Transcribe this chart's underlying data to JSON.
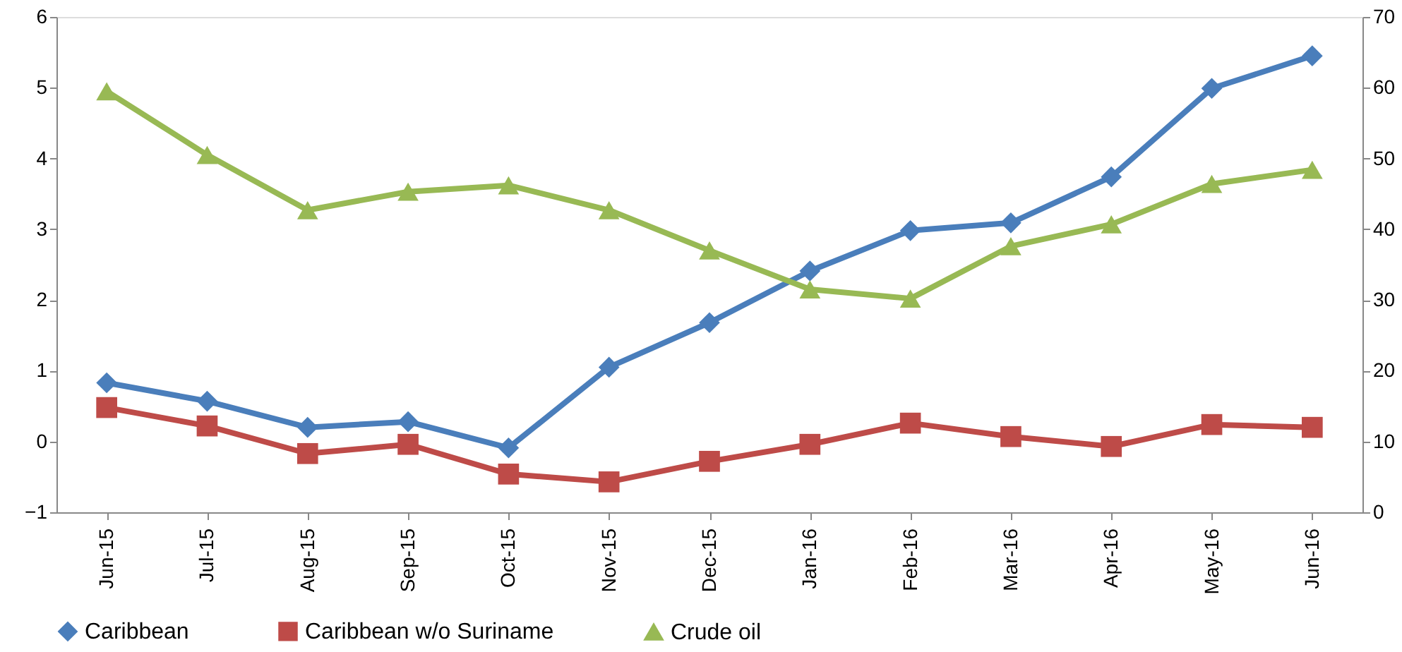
{
  "chart_data": {
    "type": "line",
    "categories": [
      "Jun-15",
      "Jul-15",
      "Aug-15",
      "Sep-15",
      "Oct-15",
      "Nov-15",
      "Dec-15",
      "Jan-16",
      "Feb-16",
      "Mar-16",
      "Apr-16",
      "May-16",
      "Jun-16"
    ],
    "series": [
      {
        "name": "Caribbean",
        "color": "#4a7ebb",
        "marker": "diamond",
        "values": [
          0.83,
          0.57,
          0.2,
          0.28,
          -0.09,
          1.05,
          1.68,
          2.41,
          2.98,
          3.09,
          3.74,
          4.99,
          5.45
        ]
      },
      {
        "name": "Caribbean w/o Suriname",
        "color": "#be4b48",
        "marker": "square",
        "values": [
          0.48,
          0.22,
          -0.17,
          -0.04,
          -0.46,
          -0.57,
          -0.28,
          -0.04,
          0.26,
          0.07,
          -0.07,
          0.24,
          0.2
        ]
      },
      {
        "name": "Crude oil",
        "color": "#98b954",
        "marker": "triangle",
        "axis": "y2",
        "values": [
          59.5,
          50.5,
          42.7,
          45.3,
          46.2,
          42.7,
          37.0,
          31.5,
          30.2,
          37.6,
          40.7,
          46.4,
          48.4
        ]
      }
    ],
    "ylim": [
      -1,
      6
    ],
    "yticks": [
      -1,
      0,
      1,
      2,
      3,
      4,
      5,
      6
    ],
    "y2lim": [
      0,
      70
    ],
    "y2ticks": [
      0,
      10,
      20,
      30,
      40,
      50,
      60,
      70
    ],
    "grid": false,
    "legend": "bottom",
    "line_style": "solid"
  }
}
